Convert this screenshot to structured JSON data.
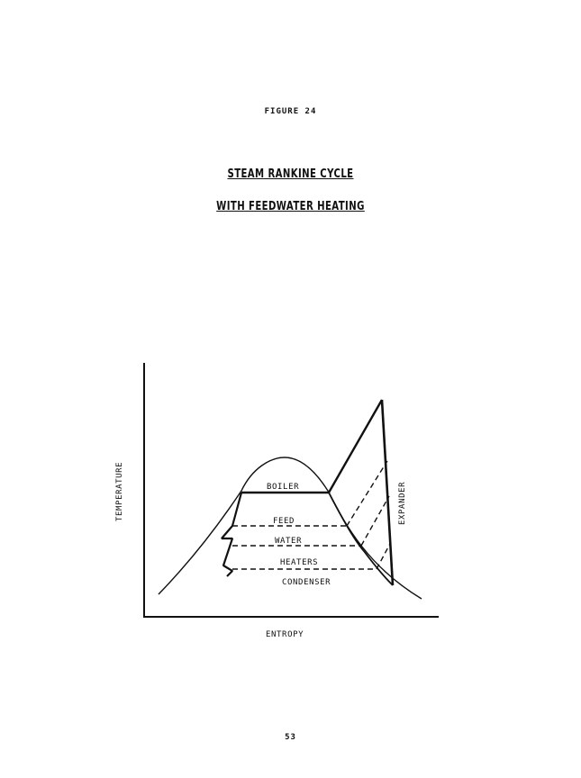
{
  "figure_label": "FIGURE 24",
  "title": {
    "line1": "STEAM RANKINE CYCLE",
    "line2": "WITH FEEDWATER HEATING"
  },
  "diagram": {
    "axes": {
      "x_label": "ENTROPY",
      "y_label": "TEMPERATURE"
    },
    "labels": {
      "boiler": "BOILER",
      "feed": "FEED",
      "water": "WATER",
      "heaters": "HEATERS",
      "condenser": "CONDENSER",
      "expander": "EXPANDER"
    }
  },
  "page_number": "53"
}
